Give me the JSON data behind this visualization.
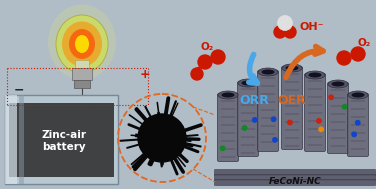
{
  "bg_color": "#b0bcc6",
  "orr_color": "#4aa8e8",
  "oer_color": "#d86820",
  "o2_color": "#cc1800",
  "oh_color": "#cc1800",
  "water_white": "#e8e8e8",
  "text_zinc_air": "Zinc-air\nbattery",
  "text_feconi": "FeCoNi-NC",
  "text_orr": "ORR",
  "text_oer": "OER",
  "text_oh": "OH⁻",
  "text_o2": "O₂",
  "minus_color": "#222222",
  "plus_color": "#cc1800",
  "dashed_color": "#e06820",
  "dashed_rect_color": "#cc1800",
  "figsize": [
    3.76,
    1.89
  ],
  "dpi": 100
}
